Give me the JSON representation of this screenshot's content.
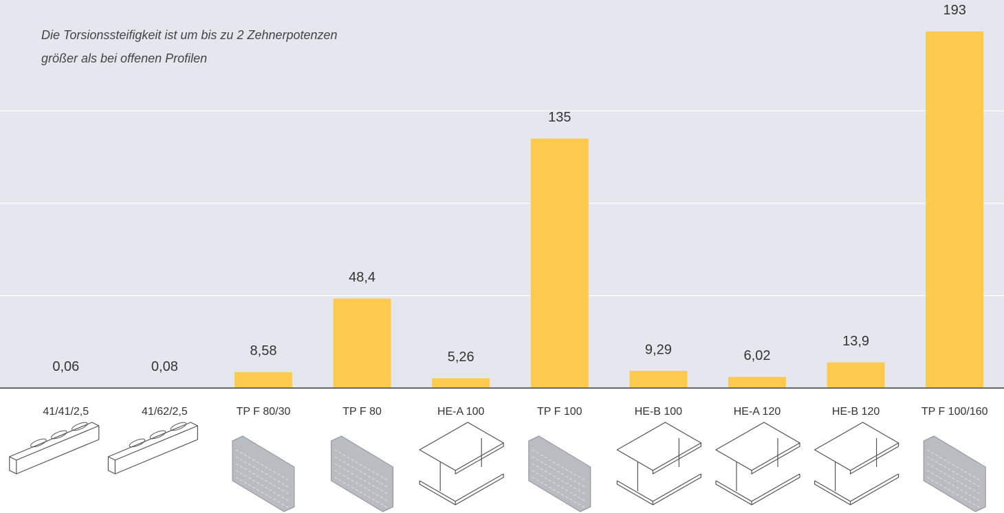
{
  "chart_data": {
    "type": "bar",
    "annotation": [
      "Die Torsionssteifigkeit ist um bis zu 2 Zehnerpotenzen",
      "größer als bei offenen Profilen"
    ],
    "categories": [
      "41/41/2,5",
      "41/62/2,5",
      "TP F 80/30",
      "TP F 80",
      "HE-A 100",
      "TP F 100",
      "HE-B 100",
      "HE-A 120",
      "HE-B 120",
      "TP F 100/160"
    ],
    "values": [
      0.06,
      0.08,
      8.58,
      48.4,
      5.26,
      135,
      9.29,
      6.02,
      13.9,
      193
    ],
    "value_labels": [
      "0,06",
      "0,08",
      "8,58",
      "48,4",
      "5,26",
      "135",
      "9,29",
      "6,02",
      "13,9",
      "193"
    ],
    "color": "#fdca4d",
    "ylim": [
      0,
      210
    ],
    "gridlines": [
      50,
      100,
      150
    ],
    "grid": true
  }
}
